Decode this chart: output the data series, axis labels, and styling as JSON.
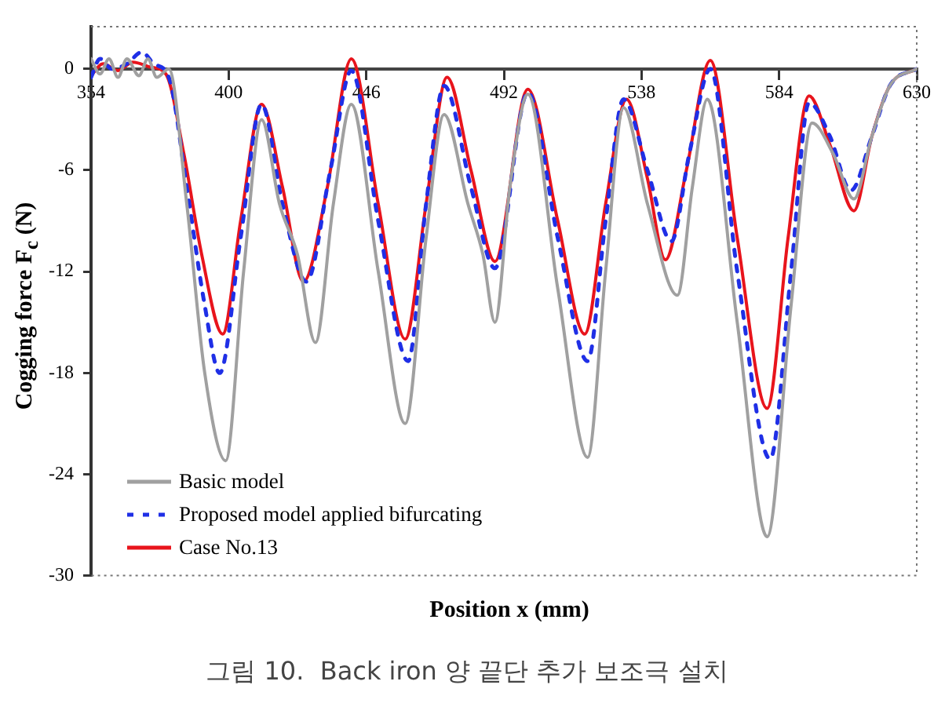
{
  "chart_data": {
    "type": "line",
    "xlabel": "Position  x (mm)",
    "ylabel": "Cogging force  F$_{c}$ (N)",
    "xlim": [
      354,
      630
    ],
    "xticks": [
      354,
      400,
      446,
      492,
      538,
      584,
      630
    ],
    "ylim": [
      -30,
      2.5
    ],
    "yticks": [
      0,
      -6,
      -12,
      -18,
      -24,
      -30
    ],
    "grid": false,
    "legend": "bottom left",
    "marker": "none",
    "annotations": [
      "그림 10.  Back iron 양 끝단 추가 보조극 설치"
    ],
    "series": [
      {
        "name": "Basic model",
        "color": "#a0a0a0",
        "line_style": "solid",
        "x": [
          354,
          357,
          360,
          363,
          366,
          370,
          373,
          376,
          380,
          386,
          392,
          399,
          405,
          411,
          417,
          423,
          429,
          435,
          441,
          450,
          459,
          466,
          472,
          480,
          485,
          489,
          494,
          500,
          510,
          520,
          526,
          532,
          540,
          550,
          555,
          560,
          570,
          580,
          588,
          595,
          602,
          609,
          615,
          621,
          630
        ],
        "values": [
          0.6,
          -0.3,
          0.6,
          -0.5,
          0.6,
          -0.4,
          0.6,
          -0.5,
          0,
          -8,
          -18,
          -23.2,
          -12,
          -3,
          -8,
          -11,
          -16.2,
          -8,
          -2.1,
          -12,
          -21,
          -10,
          -2.7,
          -8,
          -11,
          -15,
          -7,
          -1.5,
          -13,
          -23,
          -12,
          -2.3,
          -8,
          -13.4,
          -7,
          -1.8,
          -15,
          -27.7,
          -14,
          -3.2,
          -5,
          -7.7,
          -4,
          -1,
          0
        ]
      },
      {
        "name": "Proposed model applied bifurcating",
        "color": "#1f2fe6",
        "line_style": "dashed",
        "x": [
          354,
          357,
          361,
          366,
          371,
          375,
          380,
          386,
          392,
          397,
          404,
          411,
          418,
          426,
          434,
          441,
          450,
          460,
          466,
          472,
          481,
          489,
          500,
          510,
          520,
          526,
          532,
          540,
          548,
          554,
          561,
          570,
          581,
          588,
          594,
          601,
          608,
          615,
          621,
          630
        ],
        "values": [
          -0.5,
          0.6,
          0,
          0.3,
          1,
          0.3,
          -0.5,
          -7,
          -14,
          -18,
          -10,
          -2.1,
          -8,
          -12.6,
          -6,
          -0.1,
          -9,
          -17.3,
          -8,
          -1,
          -7,
          -11.8,
          -1.4,
          -10,
          -17.3,
          -9,
          -1.8,
          -6,
          -10.2,
          -5,
          0,
          -12,
          -23.1,
          -12,
          -2,
          -4,
          -7.2,
          -4,
          -1,
          0
        ]
      },
      {
        "name": "Case No.13",
        "color": "#e8141c",
        "line_style": "solid",
        "x": [
          354,
          358,
          363,
          368,
          374,
          379,
          385,
          391,
          398,
          404,
          411,
          418,
          425,
          433,
          441,
          450,
          459,
          466,
          473,
          481,
          489,
          500,
          510,
          519,
          526,
          533,
          540,
          546,
          553,
          561,
          570,
          580,
          587,
          594,
          601,
          609,
          615,
          621,
          630
        ],
        "values": [
          -0.4,
          0.3,
          -0.1,
          0.4,
          0.1,
          -0.3,
          -5,
          -11,
          -15.7,
          -9,
          -2.1,
          -7,
          -12.6,
          -7,
          0.6,
          -8,
          -16,
          -8,
          -0.5,
          -6,
          -11.4,
          -1.2,
          -9,
          -15.7,
          -8,
          -1.8,
          -6.5,
          -11.3,
          -6,
          0.5,
          -10,
          -20.1,
          -10,
          -1.6,
          -4.5,
          -8.4,
          -4,
          -1,
          0
        ]
      }
    ]
  }
}
